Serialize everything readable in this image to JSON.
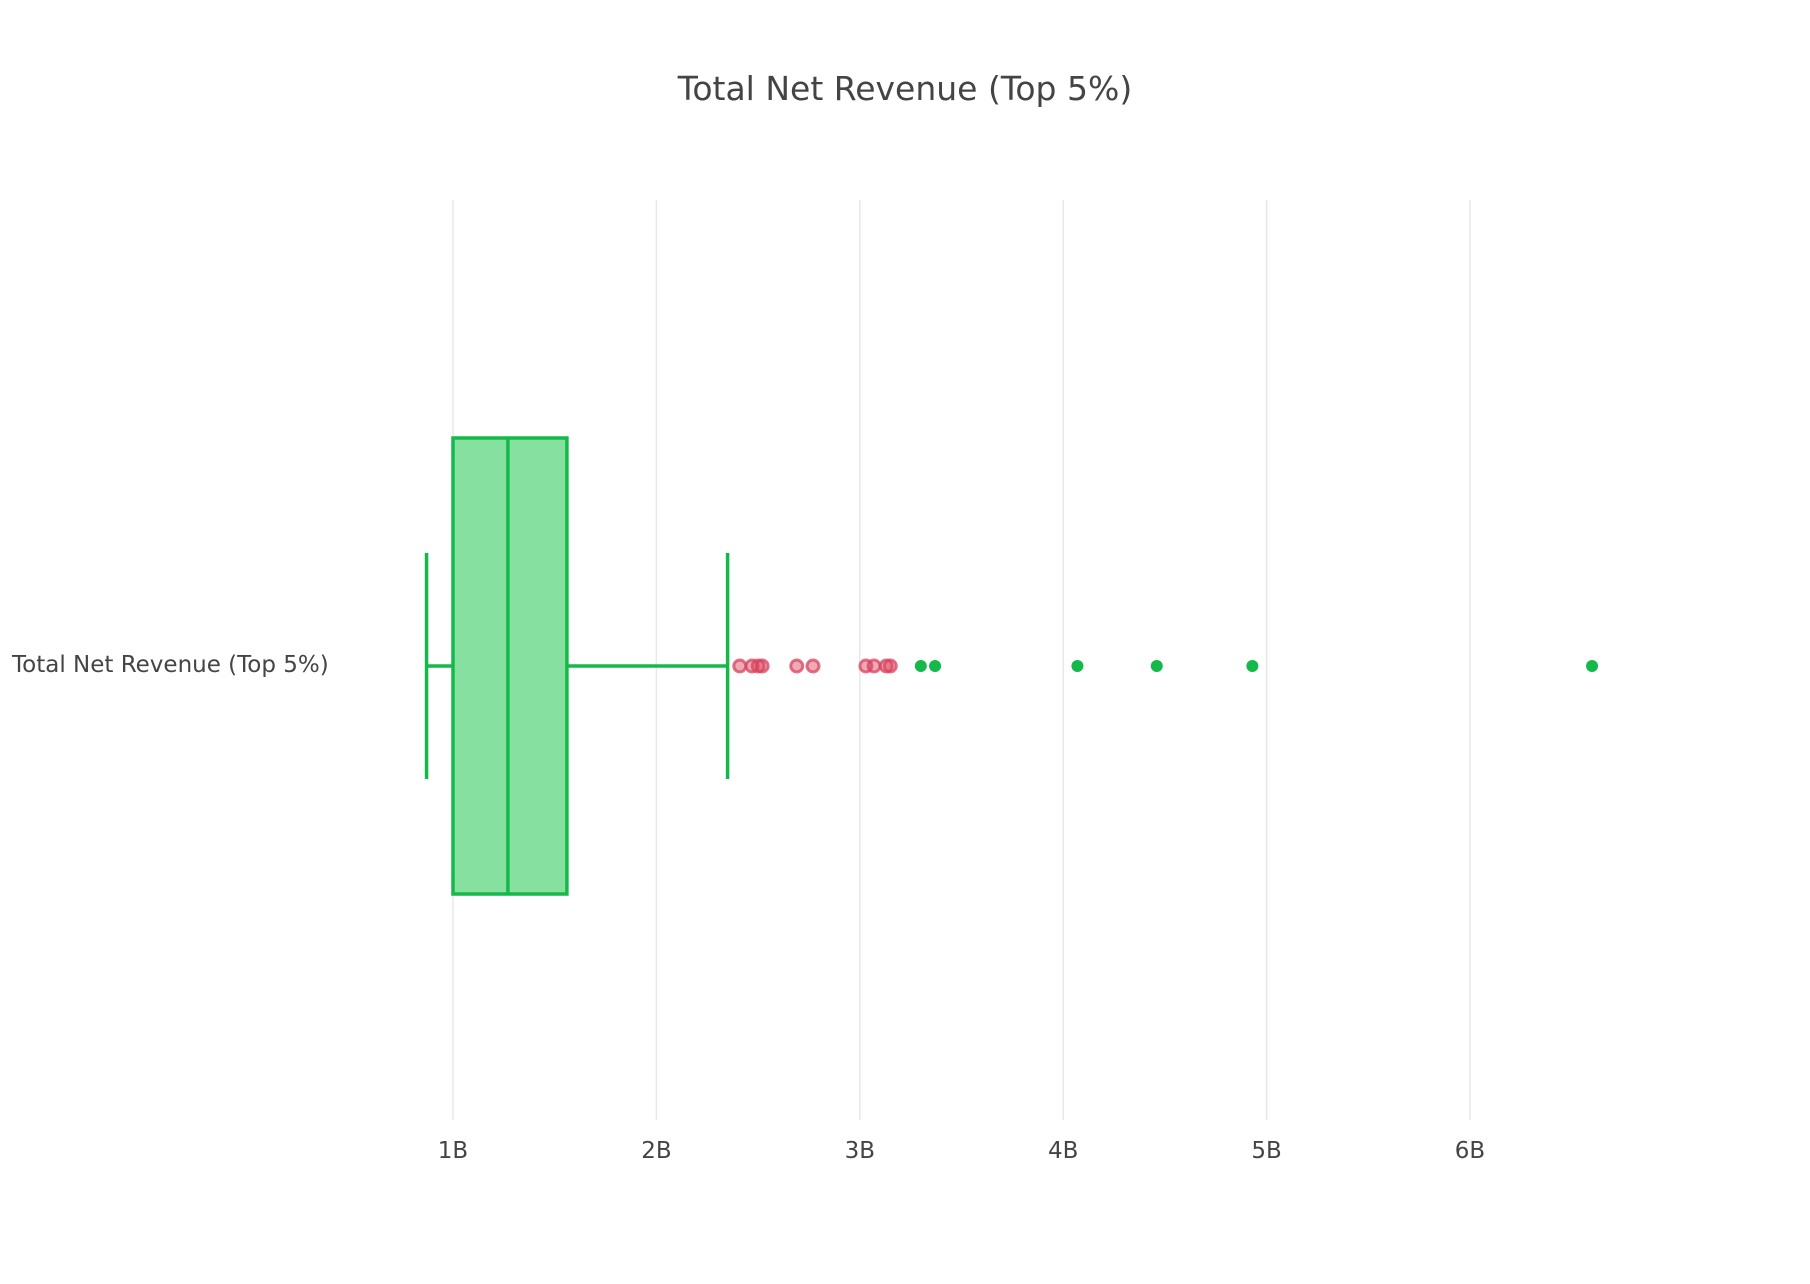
{
  "chart_data": {
    "type": "box",
    "orientation": "horizontal",
    "title": "Total Net Revenue (Top 5%)",
    "category_label": "Total Net Revenue (Top 5%)",
    "x_ticks": [
      {
        "value": 1000000000,
        "label": "1B"
      },
      {
        "value": 2000000000,
        "label": "2B"
      },
      {
        "value": 3000000000,
        "label": "3B"
      },
      {
        "value": 4000000000,
        "label": "4B"
      },
      {
        "value": 5000000000,
        "label": "5B"
      },
      {
        "value": 6000000000,
        "label": "6B"
      }
    ],
    "xlim": [
      0,
      7000000000
    ],
    "grid": "vertical",
    "box": {
      "lower_fence": 870000000,
      "q1": 1000000000,
      "median": 1270000000,
      "q3": 1560000000,
      "upper_fence": 2350000000
    },
    "suspected_outliers": [
      2410000000,
      2470000000,
      2500000000,
      2520000000,
      2690000000,
      2770000000,
      3030000000,
      3070000000,
      3130000000,
      3150000000
    ],
    "outliers": [
      3300000000,
      3370000000,
      4070000000,
      4460000000,
      4930000000,
      6600000000
    ],
    "colors": {
      "box_line": "#15b94a",
      "box_fill": "#86e09f",
      "outlier": "#15b94a",
      "suspected_outlier": "#d9445f",
      "grid": "#e8e8e8"
    }
  }
}
